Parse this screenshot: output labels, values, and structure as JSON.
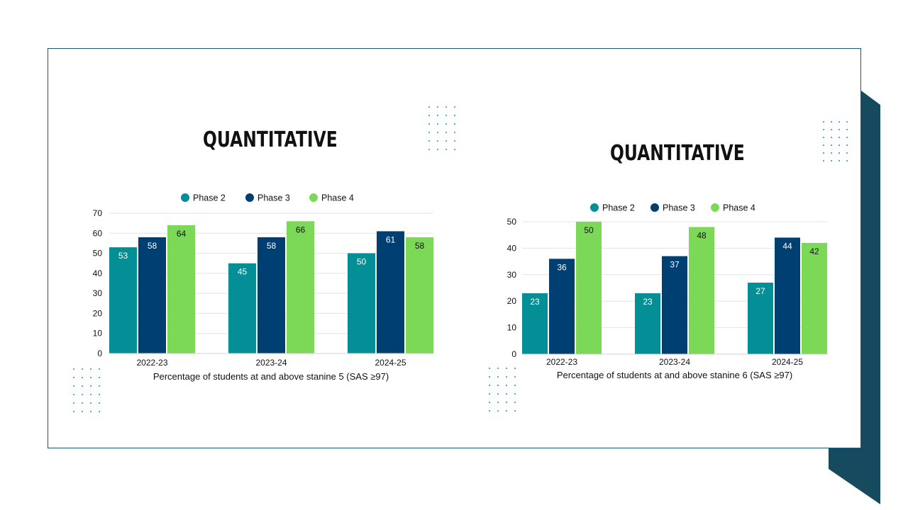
{
  "colors": {
    "phase2": "#048f96",
    "phase3": "#003f72",
    "phase4": "#7cd957",
    "frame": "#1b5870",
    "accent_dark": "#164a5e",
    "dots": "#1a9e9e"
  },
  "chart_data": [
    {
      "type": "bar",
      "title": "QUANTITATIVE",
      "categories": [
        "2022-23",
        "2023-24",
        "2024-25"
      ],
      "series": [
        {
          "name": "Phase 2",
          "values": [
            53,
            45,
            50
          ]
        },
        {
          "name": "Phase 3",
          "values": [
            58,
            58,
            61
          ]
        },
        {
          "name": "Phase 4",
          "values": [
            64,
            66,
            58
          ]
        }
      ],
      "xlabel": "Percentage of students at and above stanine 5 (SAS ≥97)",
      "ylabel": "",
      "ylim": [
        0,
        70
      ],
      "yticks": [
        0,
        10,
        20,
        30,
        40,
        50,
        60,
        70
      ],
      "grid": true,
      "legend": "top"
    },
    {
      "type": "bar",
      "title": "QUANTITATIVE",
      "categories": [
        "2022-23",
        "2023-24",
        "2024-25"
      ],
      "series": [
        {
          "name": "Phase 2",
          "values": [
            23,
            23,
            27
          ]
        },
        {
          "name": "Phase 3",
          "values": [
            36,
            37,
            44
          ]
        },
        {
          "name": "Phase 4",
          "values": [
            50,
            48,
            42
          ]
        }
      ],
      "xlabel": "Percentage of students at and above stanine 6 (SAS ≥97)",
      "ylabel": "",
      "ylim": [
        0,
        50
      ],
      "yticks": [
        0,
        10,
        20,
        30,
        40,
        50
      ],
      "grid": true,
      "legend": "top"
    }
  ]
}
